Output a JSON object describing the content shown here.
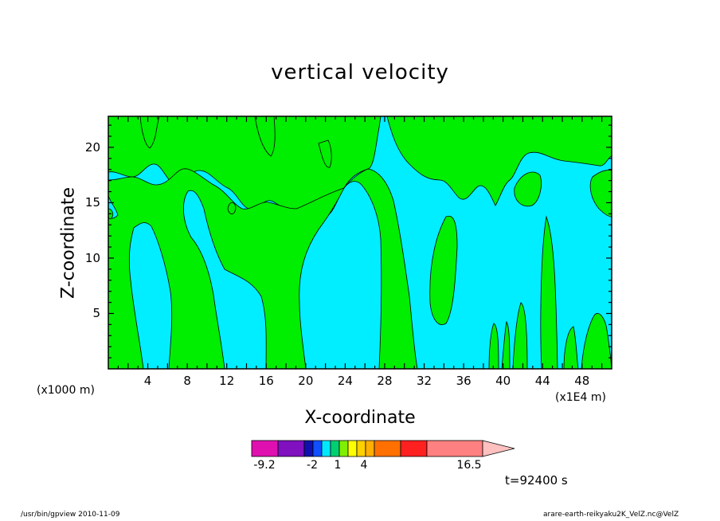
{
  "chart_data": {
    "type": "heatmap",
    "title": "vertical velocity",
    "xlabel": "X-coordinate",
    "ylabel": "Z-coordinate",
    "x_unit_left": "(x1000 m)",
    "x_unit_right": "(x1E4 m)",
    "xlim": [
      0,
      51
    ],
    "ylim": [
      0,
      22.8
    ],
    "x_ticks": [
      "4",
      "8",
      "12",
      "16",
      "20",
      "24",
      "28",
      "32",
      "36",
      "40",
      "44",
      "48"
    ],
    "y_ticks": [
      "5",
      "10",
      "15",
      "20"
    ],
    "grid": false,
    "colorbar": {
      "labels": [
        "-9.2",
        "-2",
        "1",
        "4",
        "16.5"
      ],
      "colors": [
        "#e010b0",
        "#8010c0",
        "#1010b0",
        "#1050ff",
        "#00e8ff",
        "#00d070",
        "#80f000",
        "#ffff00",
        "#ffd000",
        "#ffb000",
        "#ff7000",
        "#ff2020",
        "#ff8080"
      ]
    },
    "fill_colors": {
      "negative": "#00eeff",
      "positive": "#00ee00"
    },
    "time_label": "t=92400 s",
    "footer_left": "/usr/bin/gpview   2010-11-09",
    "footer_right": "arare-earth-reikyaku2K_VelZ.nc@VelZ"
  }
}
